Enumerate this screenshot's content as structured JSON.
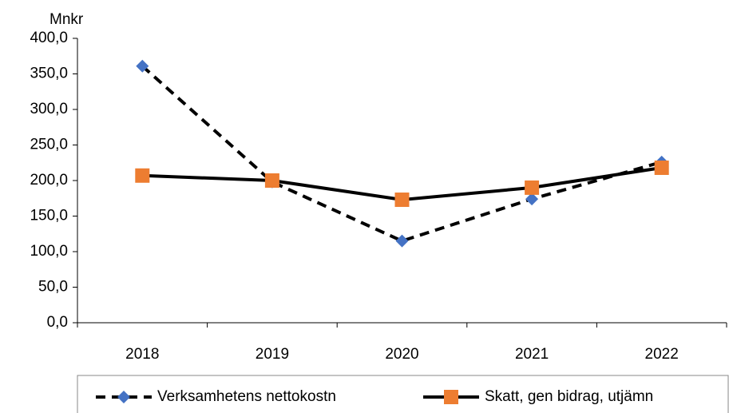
{
  "chart_data": {
    "type": "line",
    "y_axis_label": "Mnkr",
    "categories": [
      "2018",
      "2019",
      "2020",
      "2021",
      "2022"
    ],
    "series": [
      {
        "name": "Verksamhetens nettokostn",
        "color": "#4472c4",
        "line_color": "#000000",
        "dashed": true,
        "marker": "diamond",
        "values": [
          361,
          198,
          115,
          174,
          226
        ]
      },
      {
        "name": "Skatt, gen bidrag, utjämn",
        "color": "#ed7d31",
        "line_color": "#000000",
        "dashed": false,
        "marker": "square",
        "values": [
          207,
          200,
          173,
          190,
          218
        ]
      }
    ],
    "ylim": [
      0,
      400
    ],
    "yticks": [
      {
        "value": 0,
        "label": "0,0"
      },
      {
        "value": 50,
        "label": "50,0"
      },
      {
        "value": 100,
        "label": "100,0"
      },
      {
        "value": 150,
        "label": "150,0"
      },
      {
        "value": 200,
        "label": "200,0"
      },
      {
        "value": 250,
        "label": "250,0"
      },
      {
        "value": 300,
        "label": "300,0"
      },
      {
        "value": 350,
        "label": "350,0"
      },
      {
        "value": 400,
        "label": "400,0"
      }
    ],
    "grid": false
  }
}
